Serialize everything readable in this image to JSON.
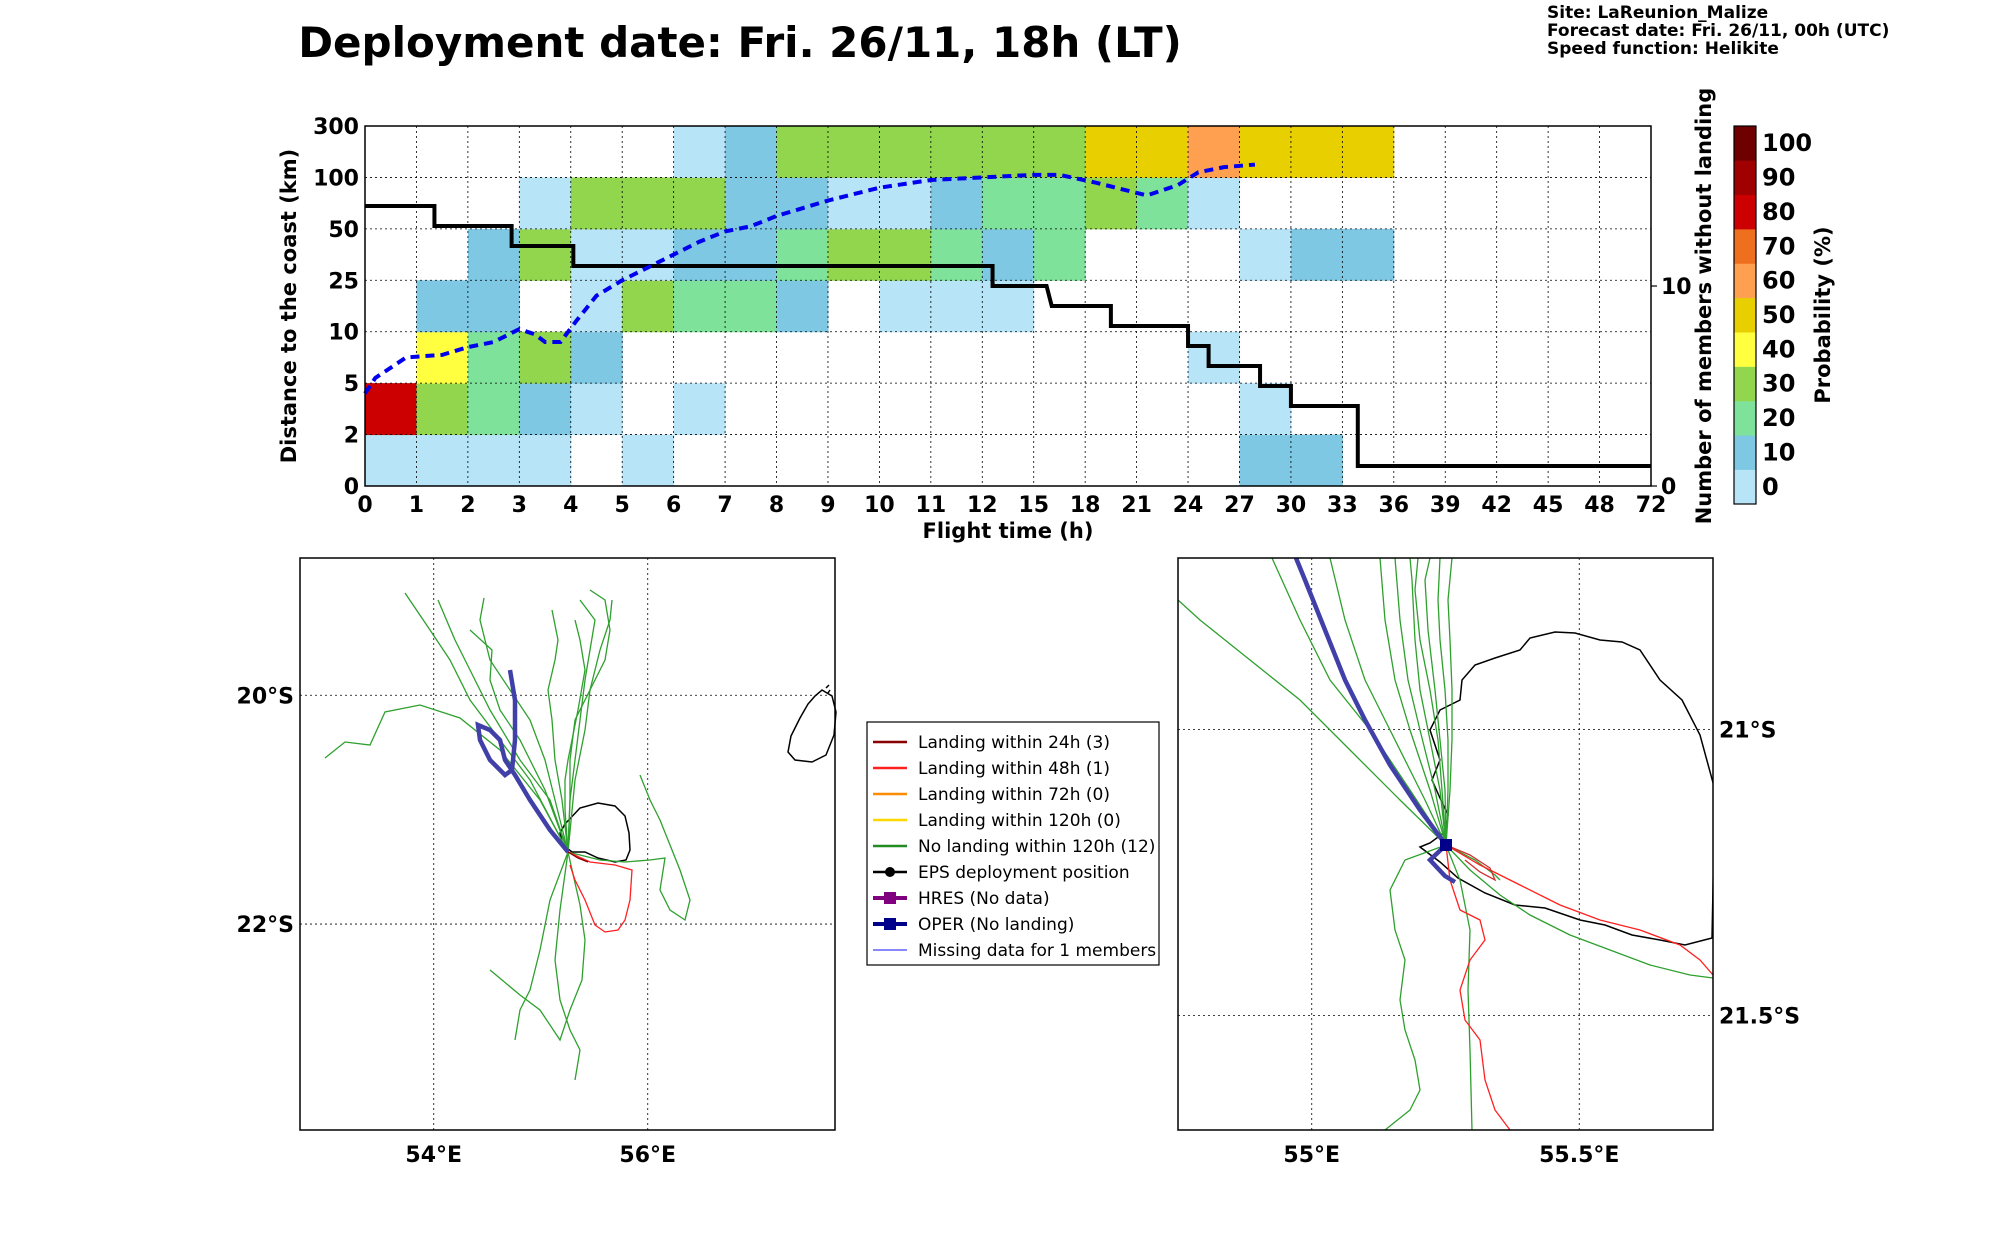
{
  "title": "Deployment date: Fri. 26/11, 18h (LT)",
  "info_lines": [
    "Site: LaReunion_Malize",
    "Forecast date: Fri. 26/11, 00h (UTC)",
    "Speed function: Helikite"
  ],
  "chart_data": [
    {
      "type": "heatmap",
      "xlabel": "Flight time (h)",
      "ylabel": "Distance to the coast (km)",
      "ylabel_right": "Number of members without landing",
      "colorbar_label": "Probability (%)",
      "x_ticks": [
        "0",
        "1",
        "2",
        "3",
        "4",
        "5",
        "6",
        "7",
        "8",
        "9",
        "10",
        "11",
        "12",
        "15",
        "18",
        "21",
        "24",
        "27",
        "30",
        "33",
        "36",
        "39",
        "42",
        "45",
        "48",
        "72"
      ],
      "y_ticks": [
        "0",
        "2",
        "5",
        "10",
        "25",
        "50",
        "100",
        "300"
      ],
      "right_ticks": [
        {
          "label": "0",
          "value": 0
        },
        {
          "label": "10",
          "value": 10
        }
      ],
      "right_range": [
        0,
        18
      ],
      "colorbar_ticks": [
        "0",
        "10",
        "20",
        "30",
        "40",
        "50",
        "60",
        "70",
        "80",
        "90",
        "100"
      ],
      "colors": [
        "#b8e4f8",
        "#7ec8e3",
        "#7ee29a",
        "#92d64e",
        "#ffff40",
        "#e8cf00",
        "#ffa050",
        "#ee6f1e",
        "#cc0000",
        "#a00000",
        "#6e0000"
      ],
      "grid": true,
      "cells_note": "each cell: [x_bin_index, y_bin_index, probability_class 0-10]",
      "cells": [
        [
          0,
          0,
          0
        ],
        [
          1,
          0,
          0
        ],
        [
          2,
          0,
          0
        ],
        [
          3,
          0,
          0
        ],
        [
          5,
          0,
          0
        ],
        [
          17,
          0,
          1
        ],
        [
          18,
          0,
          1
        ],
        [
          0,
          1,
          8
        ],
        [
          1,
          1,
          3
        ],
        [
          2,
          1,
          2
        ],
        [
          3,
          1,
          1
        ],
        [
          4,
          1,
          0
        ],
        [
          6,
          1,
          0
        ],
        [
          17,
          1,
          0
        ],
        [
          1,
          2,
          4
        ],
        [
          2,
          2,
          2
        ],
        [
          3,
          2,
          3
        ],
        [
          4,
          2,
          1
        ],
        [
          16,
          2,
          0
        ],
        [
          1,
          3,
          1
        ],
        [
          2,
          3,
          1
        ],
        [
          4,
          3,
          0
        ],
        [
          5,
          3,
          3
        ],
        [
          6,
          3,
          2
        ],
        [
          7,
          3,
          2
        ],
        [
          8,
          3,
          1
        ],
        [
          10,
          3,
          0
        ],
        [
          11,
          3,
          0
        ],
        [
          12,
          3,
          0
        ],
        [
          2,
          4,
          1
        ],
        [
          3,
          4,
          3
        ],
        [
          4,
          4,
          0
        ],
        [
          5,
          4,
          0
        ],
        [
          6,
          4,
          1
        ],
        [
          7,
          4,
          1
        ],
        [
          8,
          4,
          2
        ],
        [
          9,
          4,
          3
        ],
        [
          10,
          4,
          3
        ],
        [
          11,
          4,
          2
        ],
        [
          12,
          4,
          1
        ],
        [
          13,
          4,
          2
        ],
        [
          17,
          4,
          0
        ],
        [
          18,
          4,
          1
        ],
        [
          19,
          4,
          1
        ],
        [
          3,
          5,
          0
        ],
        [
          4,
          5,
          3
        ],
        [
          5,
          5,
          3
        ],
        [
          6,
          5,
          3
        ],
        [
          7,
          5,
          1
        ],
        [
          8,
          5,
          1
        ],
        [
          9,
          5,
          0
        ],
        [
          10,
          5,
          0
        ],
        [
          11,
          5,
          1
        ],
        [
          12,
          5,
          2
        ],
        [
          13,
          5,
          2
        ],
        [
          14,
          5,
          3
        ],
        [
          15,
          5,
          2
        ],
        [
          16,
          5,
          0
        ],
        [
          6,
          6,
          0
        ],
        [
          7,
          6,
          1
        ],
        [
          8,
          6,
          3
        ],
        [
          9,
          6,
          3
        ],
        [
          10,
          6,
          3
        ],
        [
          11,
          6,
          3
        ],
        [
          12,
          6,
          3
        ],
        [
          13,
          6,
          3
        ],
        [
          14,
          6,
          5
        ],
        [
          15,
          6,
          5
        ],
        [
          16,
          6,
          6
        ],
        [
          17,
          6,
          5
        ],
        [
          18,
          6,
          5
        ],
        [
          19,
          6,
          5
        ]
      ],
      "series": [
        {
          "name_note": "black step line: number of members without landing (right axis)",
          "style": "step",
          "color": "#000000",
          "points": [
            [
              0,
              14
            ],
            [
              1.35,
              14
            ],
            [
              1.35,
              13
            ],
            [
              2.85,
              13
            ],
            [
              2.85,
              12
            ],
            [
              4.05,
              12
            ],
            [
              4.05,
              11
            ],
            [
              12.2,
              11
            ],
            [
              12.2,
              10
            ],
            [
              13.25,
              10
            ],
            [
              13.35,
              9
            ],
            [
              14.5,
              9
            ],
            [
              14.5,
              8
            ],
            [
              16.0,
              8
            ],
            [
              16.0,
              7
            ],
            [
              16.4,
              7
            ],
            [
              16.4,
              6
            ],
            [
              17.4,
              6
            ],
            [
              17.4,
              5
            ],
            [
              18.0,
              5
            ],
            [
              18.0,
              4
            ],
            [
              19.3,
              4
            ],
            [
              19.3,
              1
            ],
            [
              25,
              1
            ]
          ]
        },
        {
          "name_note": "blue dashed line: median distance to the coast (left axis, bin units)",
          "style": "dashed",
          "color": "#0000ee",
          "points": [
            [
              0,
              1.8
            ],
            [
              0.2,
              2.1
            ],
            [
              0.8,
              2.5
            ],
            [
              1.5,
              2.55
            ],
            [
              2.0,
              2.7
            ],
            [
              2.5,
              2.8
            ],
            [
              3.0,
              3.05
            ],
            [
              3.3,
              2.95
            ],
            [
              3.5,
              2.8
            ],
            [
              3.8,
              2.8
            ],
            [
              4.1,
              3.2
            ],
            [
              4.5,
              3.7
            ],
            [
              5.0,
              4.0
            ],
            [
              5.5,
              4.25
            ],
            [
              6.0,
              4.5
            ],
            [
              6.5,
              4.75
            ],
            [
              7.0,
              4.95
            ],
            [
              7.5,
              5.05
            ],
            [
              8.0,
              5.25
            ],
            [
              9.0,
              5.55
            ],
            [
              10.0,
              5.8
            ],
            [
              11.0,
              5.95
            ],
            [
              12.0,
              6.0
            ],
            [
              13.0,
              6.05
            ],
            [
              13.5,
              6.05
            ],
            [
              14.2,
              5.9
            ],
            [
              14.8,
              5.75
            ],
            [
              15.2,
              5.65
            ],
            [
              15.8,
              5.85
            ],
            [
              16.2,
              6.1
            ],
            [
              16.7,
              6.2
            ],
            [
              17.3,
              6.25
            ]
          ]
        }
      ]
    },
    {
      "type": "map",
      "lat_labels": [
        "20°S",
        "22°S"
      ],
      "lon_labels": [
        "54°E",
        "56°E"
      ],
      "lon_range": [
        52.75,
        57.75
      ],
      "lat_range": [
        18.8,
        23.8
      ],
      "lat_ticks": [
        20,
        22
      ],
      "lon_ticks": [
        54,
        56
      ]
    },
    {
      "type": "map",
      "lat_labels": [
        "21°S",
        "21.5°S"
      ],
      "lon_labels": [
        "55°E",
        "55.5°E"
      ],
      "lon_range": [
        54.75,
        55.75
      ],
      "lat_range": [
        20.7,
        21.7
      ],
      "lat_ticks": [
        21.0,
        21.5
      ],
      "lon_ticks": [
        55.0,
        55.5
      ]
    }
  ],
  "legend": {
    "items": [
      {
        "label": "Landing within 24h (3)",
        "color": "#8b0000",
        "kind": "line"
      },
      {
        "label": "Landing within 48h (1)",
        "color": "#ff2020",
        "kind": "line"
      },
      {
        "label": "Landing within 72h (0)",
        "color": "#ff8c00",
        "kind": "line"
      },
      {
        "label": "Landing within 120h (0)",
        "color": "#ffd700",
        "kind": "line"
      },
      {
        "label": "No landing within 120h (12)",
        "color": "#228b22",
        "kind": "line"
      },
      {
        "label": "EPS deployment position",
        "color": "#000000",
        "kind": "dot"
      },
      {
        "label": "HRES (No data)",
        "color": "#800080",
        "kind": "square"
      },
      {
        "label": "OPER (No landing)",
        "color": "#00008b",
        "kind": "square"
      },
      {
        "label": "Missing data for 1 members",
        "color": "#4040ff",
        "kind": "thin"
      }
    ]
  }
}
